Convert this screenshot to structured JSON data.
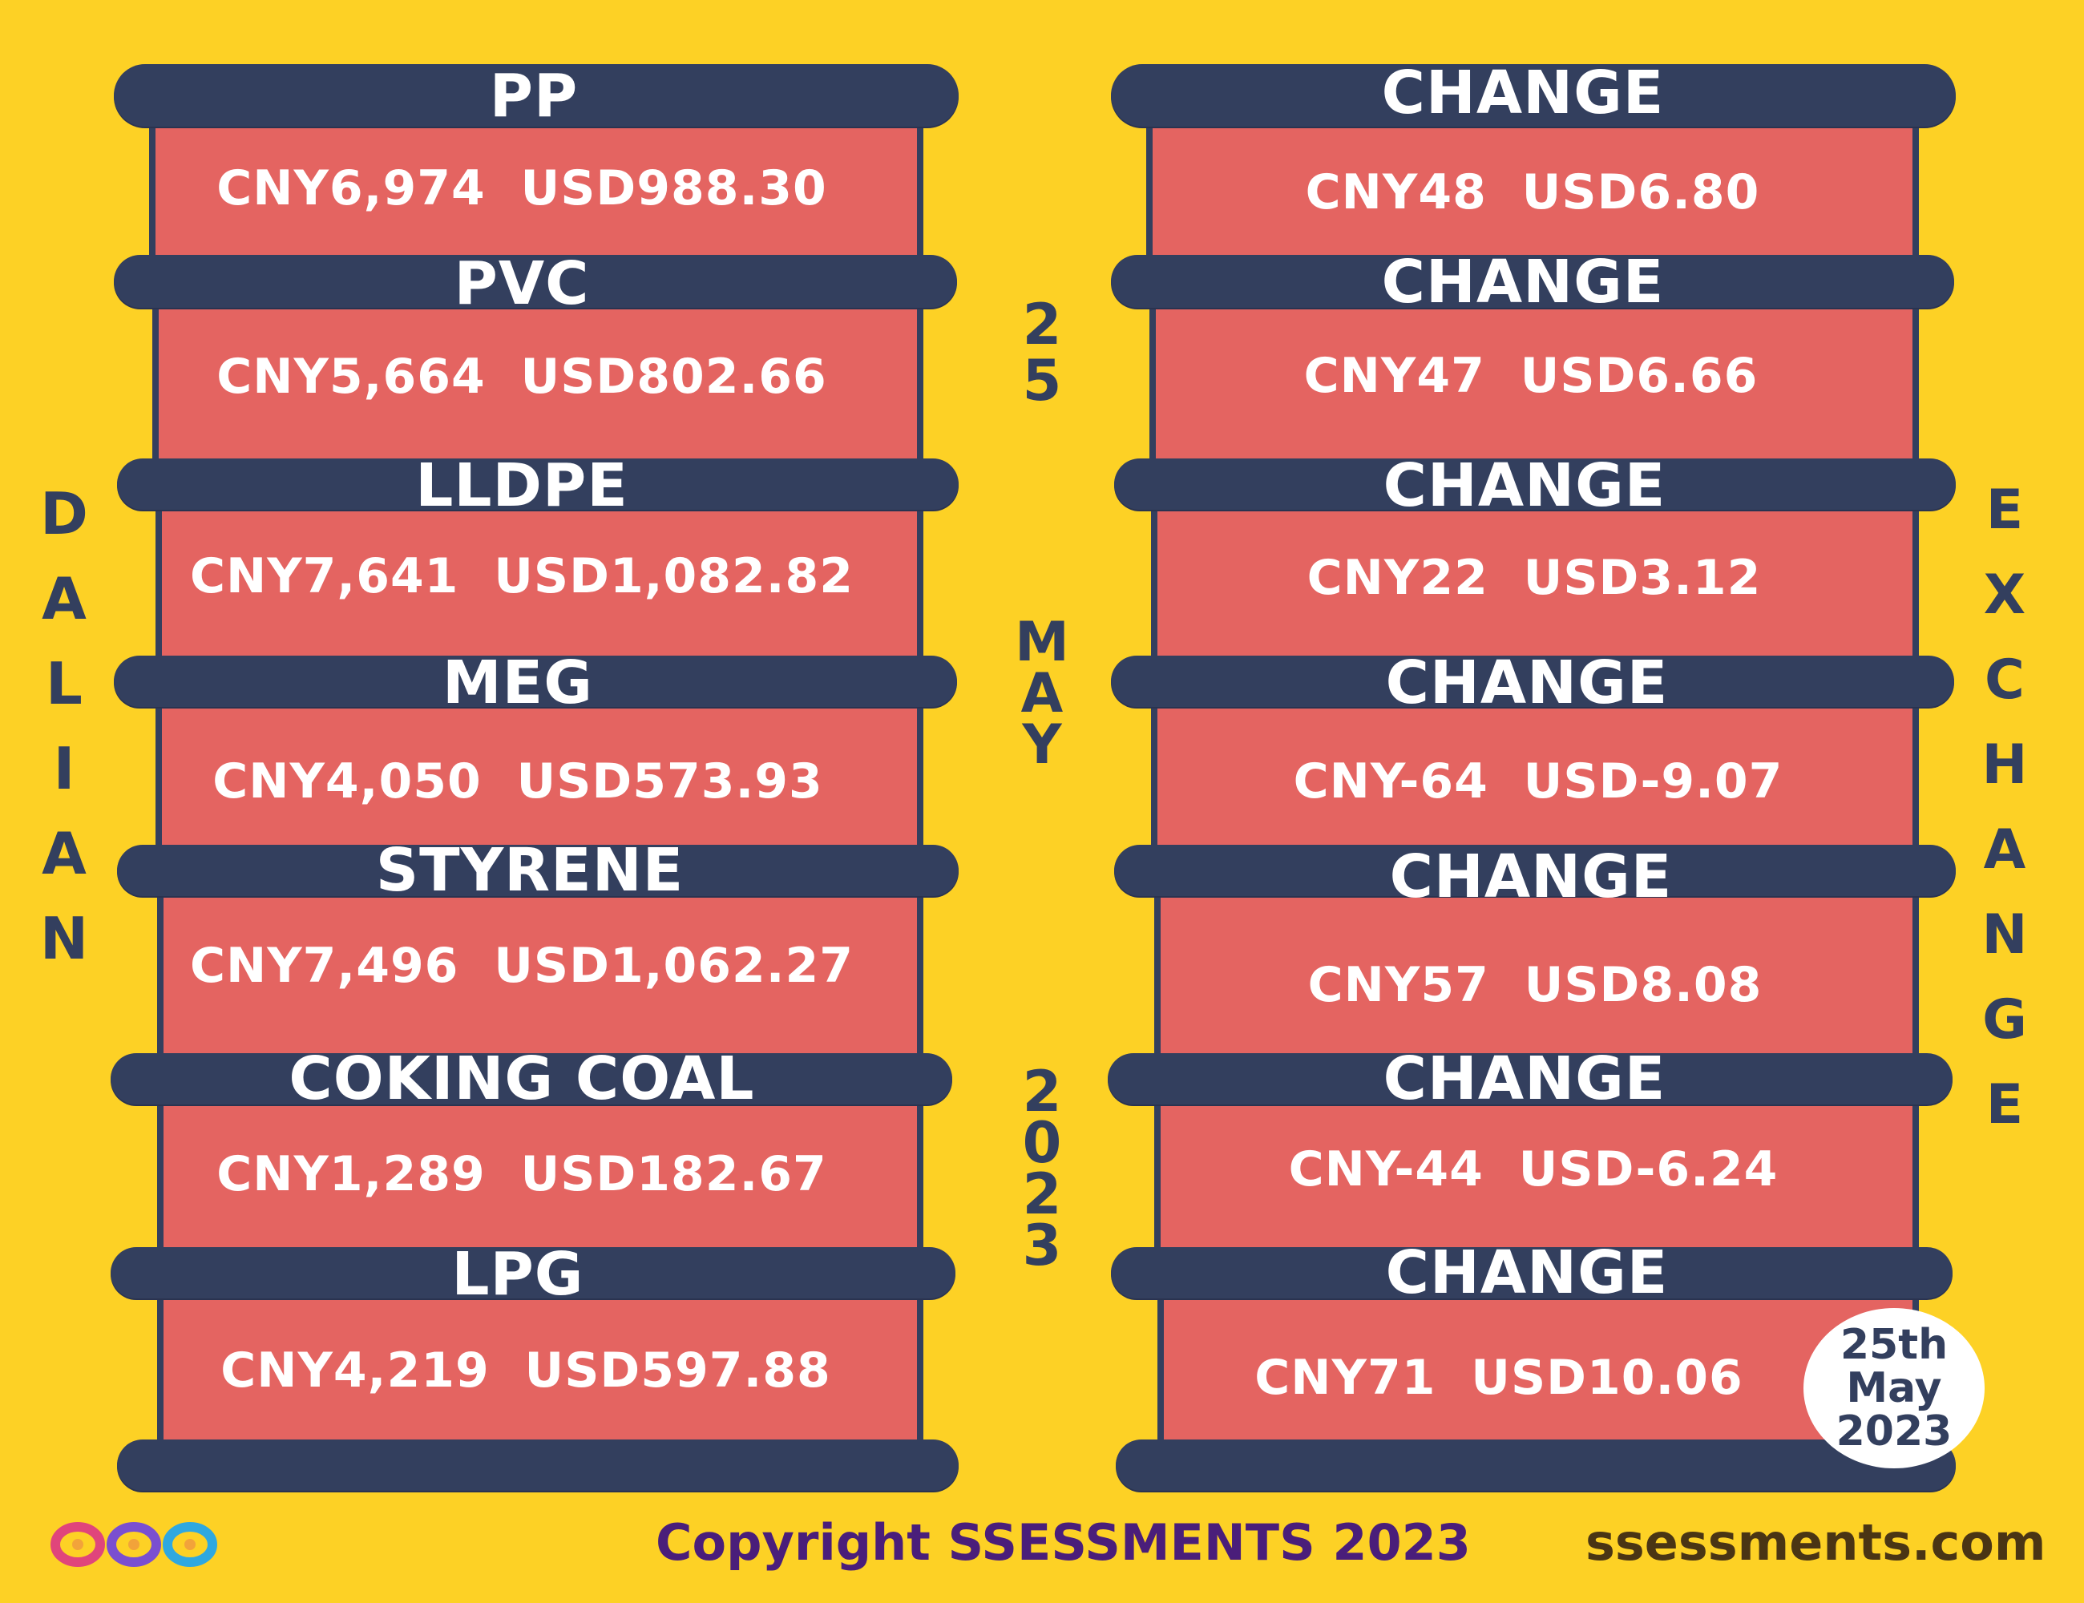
{
  "left_title": [
    "D",
    "A",
    "L",
    "I",
    "A",
    "N"
  ],
  "right_title": [
    "E",
    "X",
    "C",
    "H",
    "A",
    "N",
    "G",
    "E"
  ],
  "center_day": [
    "2",
    "5"
  ],
  "center_month": [
    "M",
    "A",
    "Y"
  ],
  "center_year": [
    "2",
    "0",
    "2",
    "3"
  ],
  "products": [
    {
      "name": "PP",
      "price": "CNY6,974  USD988.30",
      "change_label": "CHANGE",
      "change": "CNY48  USD6.80"
    },
    {
      "name": "PVC",
      "price": "CNY5,664  USD802.66",
      "change_label": "CHANGE",
      "change": "CNY47  USD6.66"
    },
    {
      "name": "LLDPE",
      "price": "CNY7,641  USD1,082.82",
      "change_label": "CHANGE",
      "change": "CNY22  USD3.12"
    },
    {
      "name": "MEG",
      "price": "CNY4,050  USD573.93",
      "change_label": "CHANGE",
      "change": "CNY-64  USD-9.07"
    },
    {
      "name": "STYRENE",
      "price": "CNY7,496  USD1,062.27",
      "change_label": "CHANGE",
      "change": "CNY57  USD8.08"
    },
    {
      "name": "COKING COAL",
      "price": "CNY1,289  USD182.67",
      "change_label": "CHANGE",
      "change": "CNY-44  USD-6.24"
    },
    {
      "name": "LPG",
      "price": "CNY4,219  USD597.88",
      "change_label": "CHANGE",
      "change": "CNY71  USD10.06"
    }
  ],
  "badge": {
    "line1": "25th",
    "line2": "May",
    "line3": "2023"
  },
  "footer": {
    "copyright": "Copyright SSESSMENTS 2023",
    "website": "ssessments.com"
  },
  "colors": {
    "background": "#FDD125",
    "bar": "#333F5E",
    "panel": "#E46461",
    "text_dark": "#333F5E",
    "footer_purple": "#4A1E7A",
    "footer_brown": "#4A3514"
  },
  "icons": [
    "infinity-logo-icon"
  ]
}
